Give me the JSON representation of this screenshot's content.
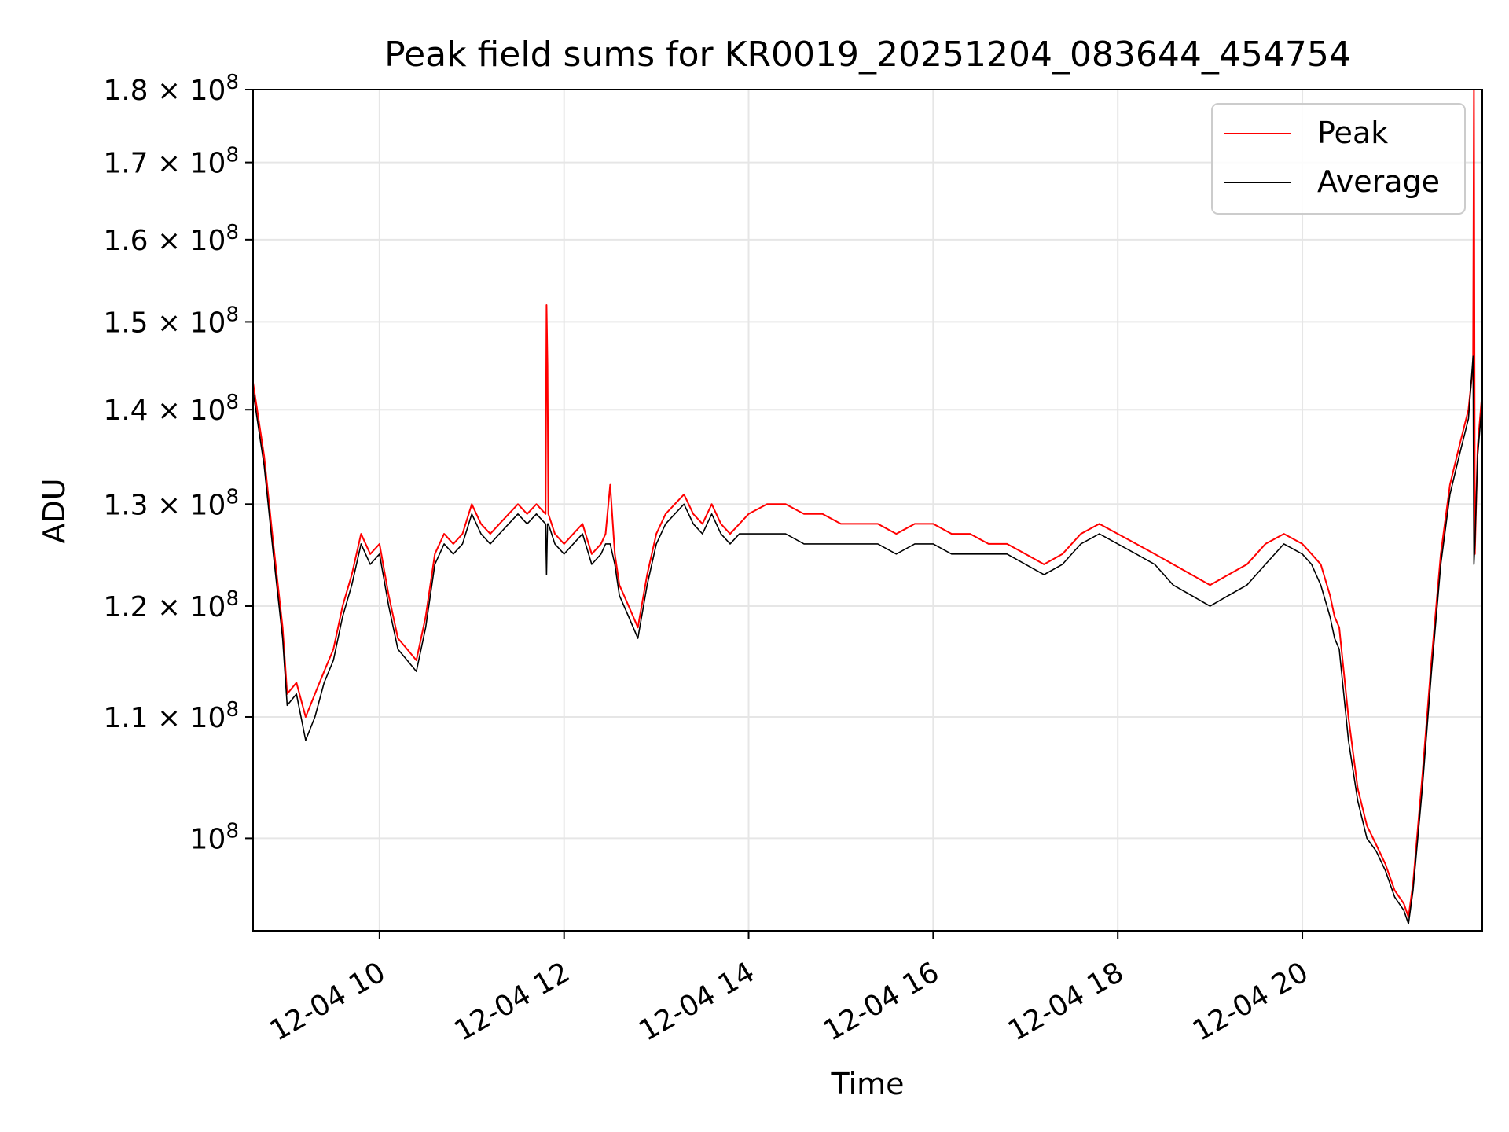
{
  "chart_data": {
    "type": "line",
    "title": "Peak field sums for KR0019_20251204_083644_454754",
    "xlabel": "Time",
    "ylabel": "ADU",
    "yscale": "log",
    "grid": true,
    "legend_position": "top-right",
    "xlim_hours": [
      8.63,
      21.95
    ],
    "ylim": [
      93000000,
      180000000
    ],
    "x_ticks": [
      {
        "value": 10,
        "label": "12-04 10"
      },
      {
        "value": 12,
        "label": "12-04 12"
      },
      {
        "value": 14,
        "label": "12-04 14"
      },
      {
        "value": 16,
        "label": "12-04 16"
      },
      {
        "value": 18,
        "label": "12-04 18"
      },
      {
        "value": 20,
        "label": "12-04 20"
      }
    ],
    "y_ticks": [
      {
        "value": 100000000,
        "mantissa": "",
        "exponent": "8",
        "label": "10"
      },
      {
        "value": 110000000,
        "mantissa": "1.1",
        "exponent": "8",
        "label": "10"
      },
      {
        "value": 120000000,
        "mantissa": "1.2",
        "exponent": "8",
        "label": "10"
      },
      {
        "value": 130000000,
        "mantissa": "1.3",
        "exponent": "8",
        "label": "10"
      },
      {
        "value": 140000000,
        "mantissa": "1.4",
        "exponent": "8",
        "label": "10"
      },
      {
        "value": 150000000,
        "mantissa": "1.5",
        "exponent": "8",
        "label": "10"
      },
      {
        "value": 160000000,
        "mantissa": "1.6",
        "exponent": "8",
        "label": "10"
      },
      {
        "value": 170000000,
        "mantissa": "1.7",
        "exponent": "8",
        "label": "10"
      },
      {
        "value": 180000000,
        "mantissa": "1.8",
        "exponent": "8",
        "label": "10"
      }
    ],
    "series": [
      {
        "name": "Peak",
        "color": "#ff0000",
        "x_hours": [
          8.63,
          8.75,
          8.85,
          8.95,
          9.0,
          9.1,
          9.2,
          9.3,
          9.4,
          9.5,
          9.6,
          9.7,
          9.8,
          9.9,
          10.0,
          10.1,
          10.2,
          10.3,
          10.4,
          10.5,
          10.6,
          10.7,
          10.8,
          10.9,
          11.0,
          11.1,
          11.2,
          11.3,
          11.4,
          11.5,
          11.6,
          11.7,
          11.8,
          11.81,
          11.82,
          11.83,
          11.9,
          12.0,
          12.1,
          12.2,
          12.3,
          12.4,
          12.45,
          12.5,
          12.55,
          12.6,
          12.7,
          12.8,
          12.9,
          13.0,
          13.1,
          13.2,
          13.3,
          13.4,
          13.5,
          13.6,
          13.7,
          13.8,
          13.9,
          14.0,
          14.2,
          14.4,
          14.6,
          14.8,
          15.0,
          15.2,
          15.4,
          15.6,
          15.8,
          16.0,
          16.2,
          16.4,
          16.6,
          16.8,
          17.0,
          17.2,
          17.4,
          17.6,
          17.8,
          18.0,
          18.2,
          18.4,
          18.6,
          18.8,
          19.0,
          19.2,
          19.4,
          19.6,
          19.8,
          20.0,
          20.1,
          20.2,
          20.3,
          20.35,
          20.4,
          20.5,
          20.6,
          20.7,
          20.8,
          20.9,
          21.0,
          21.1,
          21.15,
          21.2,
          21.3,
          21.4,
          21.5,
          21.6,
          21.7,
          21.8,
          21.85,
          21.86,
          21.87,
          21.9,
          21.95
        ],
        "values": [
          143,
          135,
          126,
          118,
          112,
          113,
          110,
          112,
          114,
          116,
          120,
          123,
          127,
          125,
          126,
          121,
          117,
          116,
          115,
          119,
          125,
          127,
          126,
          127,
          130,
          128,
          127,
          128,
          129,
          130,
          129,
          130,
          129,
          152,
          145,
          129,
          127,
          126,
          127,
          128,
          125,
          126,
          127,
          132,
          125,
          122,
          120,
          118,
          123,
          127,
          129,
          130,
          131,
          129,
          128,
          130,
          128,
          127,
          128,
          129,
          130,
          130,
          129,
          129,
          128,
          128,
          128,
          127,
          128,
          128,
          127,
          127,
          126,
          126,
          125,
          124,
          125,
          127,
          128,
          127,
          126,
          125,
          124,
          123,
          122,
          123,
          124,
          126,
          127,
          126,
          125,
          124,
          121,
          119,
          118,
          110,
          104,
          101,
          99.5,
          98,
          96,
          95,
          94,
          96.5,
          105,
          115,
          125,
          132,
          136,
          140,
          145,
          180,
          125,
          136,
          142
        ],
        "values_unit": "x10^6 ADU"
      },
      {
        "name": "Average",
        "color": "#000000",
        "x_hours": [
          8.63,
          8.75,
          8.85,
          8.95,
          9.0,
          9.1,
          9.2,
          9.3,
          9.4,
          9.5,
          9.6,
          9.7,
          9.8,
          9.9,
          10.0,
          10.1,
          10.2,
          10.3,
          10.4,
          10.5,
          10.6,
          10.7,
          10.8,
          10.9,
          11.0,
          11.1,
          11.2,
          11.3,
          11.4,
          11.5,
          11.6,
          11.7,
          11.8,
          11.81,
          11.82,
          11.83,
          11.9,
          12.0,
          12.1,
          12.2,
          12.3,
          12.4,
          12.45,
          12.5,
          12.55,
          12.6,
          12.7,
          12.8,
          12.9,
          13.0,
          13.1,
          13.2,
          13.3,
          13.4,
          13.5,
          13.6,
          13.7,
          13.8,
          13.9,
          14.0,
          14.2,
          14.4,
          14.6,
          14.8,
          15.0,
          15.2,
          15.4,
          15.6,
          15.8,
          16.0,
          16.2,
          16.4,
          16.6,
          16.8,
          17.0,
          17.2,
          17.4,
          17.6,
          17.8,
          18.0,
          18.2,
          18.4,
          18.6,
          18.8,
          19.0,
          19.2,
          19.4,
          19.6,
          19.8,
          20.0,
          20.1,
          20.2,
          20.3,
          20.35,
          20.4,
          20.5,
          20.6,
          20.7,
          20.8,
          20.9,
          21.0,
          21.1,
          21.15,
          21.2,
          21.3,
          21.4,
          21.5,
          21.6,
          21.7,
          21.8,
          21.85,
          21.86,
          21.87,
          21.9,
          21.95
        ],
        "values": [
          142,
          134,
          125,
          117,
          111,
          112,
          108,
          110,
          113,
          115,
          119,
          122,
          126,
          124,
          125,
          120,
          116,
          115,
          114,
          118,
          124,
          126,
          125,
          126,
          129,
          127,
          126,
          127,
          128,
          129,
          128,
          129,
          128,
          123,
          128,
          128,
          126,
          125,
          126,
          127,
          124,
          125,
          126,
          126,
          124,
          121,
          119,
          117,
          122,
          126,
          128,
          129,
          130,
          128,
          127,
          129,
          127,
          126,
          127,
          127,
          127,
          127,
          126,
          126,
          126,
          126,
          126,
          125,
          126,
          126,
          125,
          125,
          125,
          125,
          124,
          123,
          124,
          126,
          127,
          126,
          125,
          124,
          122,
          121,
          120,
          121,
          122,
          124,
          126,
          125,
          124,
          122,
          119,
          117,
          116,
          108,
          103,
          100,
          99,
          97.5,
          95.5,
          94.5,
          93.5,
          96,
          104,
          114,
          124,
          131,
          135,
          139,
          146,
          124,
          126,
          135,
          141
        ],
        "values_unit": "x10^6 ADU"
      }
    ]
  }
}
